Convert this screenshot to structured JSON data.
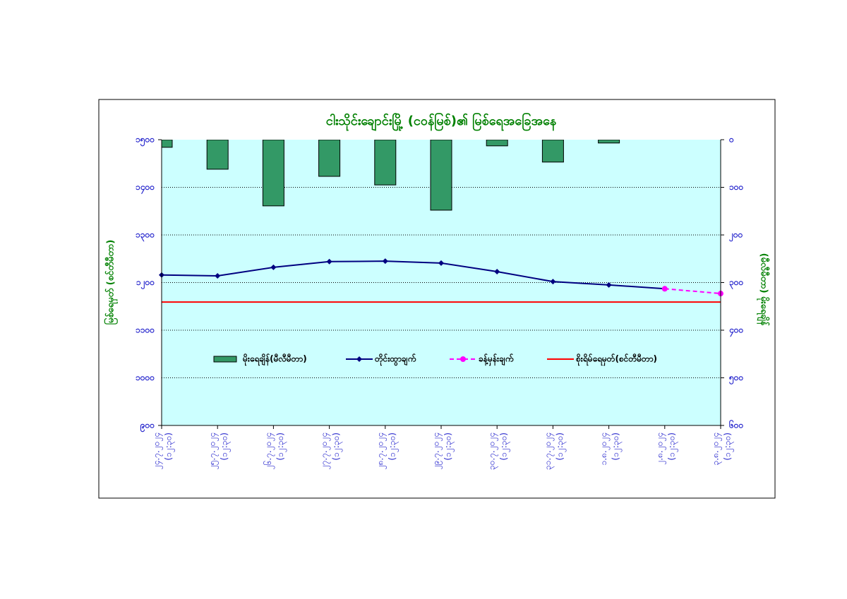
{
  "chart_data": {
    "type": "bar_line",
    "title": "ငါးသိုင်းချောင်းမြို့ (ငဝန်မြစ်)၏ မြစ်ရေအခြေအနေ",
    "y_label": "မြစ်ရေမှတ် (စင်တီမီတာ)",
    "y2_label": "(မီလီမီတာ) မိုးရေချိန်",
    "categories": [
      [
        "၂၄.၇.၂၀၂၄",
        "(၁၂:၃၀)"
      ],
      [
        "၂၅.၇.၂၀၂၄",
        "(၁၂:၃၀)"
      ],
      [
        "၂၆.၇.၂၀၂၄",
        "(၁၂:၃၀)"
      ],
      [
        "၂၇.၇.၂၀၂၄",
        "(၁၂:၃၀)"
      ],
      [
        "၂၈.၇.၂၀၂၄",
        "(၁၂:၃၀)"
      ],
      [
        "၂၉.၇.၂၀၂၄",
        "(၁၂:၃၀)"
      ],
      [
        "၃၀.၇.၂၀၂၄",
        "(၁၂:၃၀)"
      ],
      [
        "၃၁.၇.၂၀၂၄",
        "(၁၂:၃၀)"
      ],
      [
        "၁.၈.၂၀၂၄",
        "(၁၂:၃၀)"
      ],
      [
        "၂.၈.၂၀၂၄",
        "(၁၂:၃၀)"
      ],
      [
        "၃.၈.၂၀၂၄",
        "(၁၂:၃၀)"
      ]
    ],
    "ylim": [
      900,
      1500
    ],
    "yticks": [
      {
        "value": 900,
        "label": "၉၀၀"
      },
      {
        "value": 1000,
        "label": "၁၀၀၀"
      },
      {
        "value": 1100,
        "label": "၁၁၀၀"
      },
      {
        "value": 1200,
        "label": "၁၂၀၀"
      },
      {
        "value": 1300,
        "label": "၁၃၀၀"
      },
      {
        "value": 1400,
        "label": "၁၄၀၀"
      },
      {
        "value": 1500,
        "label": "၁၅၀၀"
      }
    ],
    "y2lim": [
      600,
      0
    ],
    "y2ticks": [
      {
        "value": 0,
        "label": "၀"
      },
      {
        "value": 100,
        "label": "၁၀၀"
      },
      {
        "value": 200,
        "label": "၂၀၀"
      },
      {
        "value": 300,
        "label": "၃၀၀"
      },
      {
        "value": 400,
        "label": "၄၀၀"
      },
      {
        "value": 500,
        "label": "၅၀၀"
      },
      {
        "value": 600,
        "label": "၆၀၀"
      }
    ],
    "grid": true,
    "series": [
      {
        "name": "မိုးရေချိန်(မီလီမီတာ)",
        "kind": "bar",
        "axis": "y2",
        "color": "#339966",
        "values": [
          16,
          62,
          139,
          77,
          95,
          148,
          13,
          47,
          7,
          null,
          null
        ]
      },
      {
        "name": "တိုင်းထွာချက်",
        "kind": "line",
        "color": "#000080",
        "marker": "diamond",
        "values": [
          1216,
          1214,
          1232,
          1244,
          1245,
          1241,
          1223,
          1202,
          1195,
          1187,
          null
        ]
      },
      {
        "name": "ခန့်မှန်းချက်",
        "kind": "line",
        "color": "#ff00ff",
        "marker": "circle",
        "dashed": true,
        "values": [
          null,
          null,
          null,
          null,
          null,
          null,
          null,
          null,
          null,
          1187,
          1177
        ]
      },
      {
        "name": "စိုးရိမ်ရေမှတ်(စင်တီမီတာ)",
        "kind": "line",
        "color": "#ff0000",
        "values": [
          1159,
          1159,
          1159,
          1159,
          1159,
          1159,
          1159,
          1159,
          1159,
          1159,
          1159
        ]
      }
    ]
  }
}
